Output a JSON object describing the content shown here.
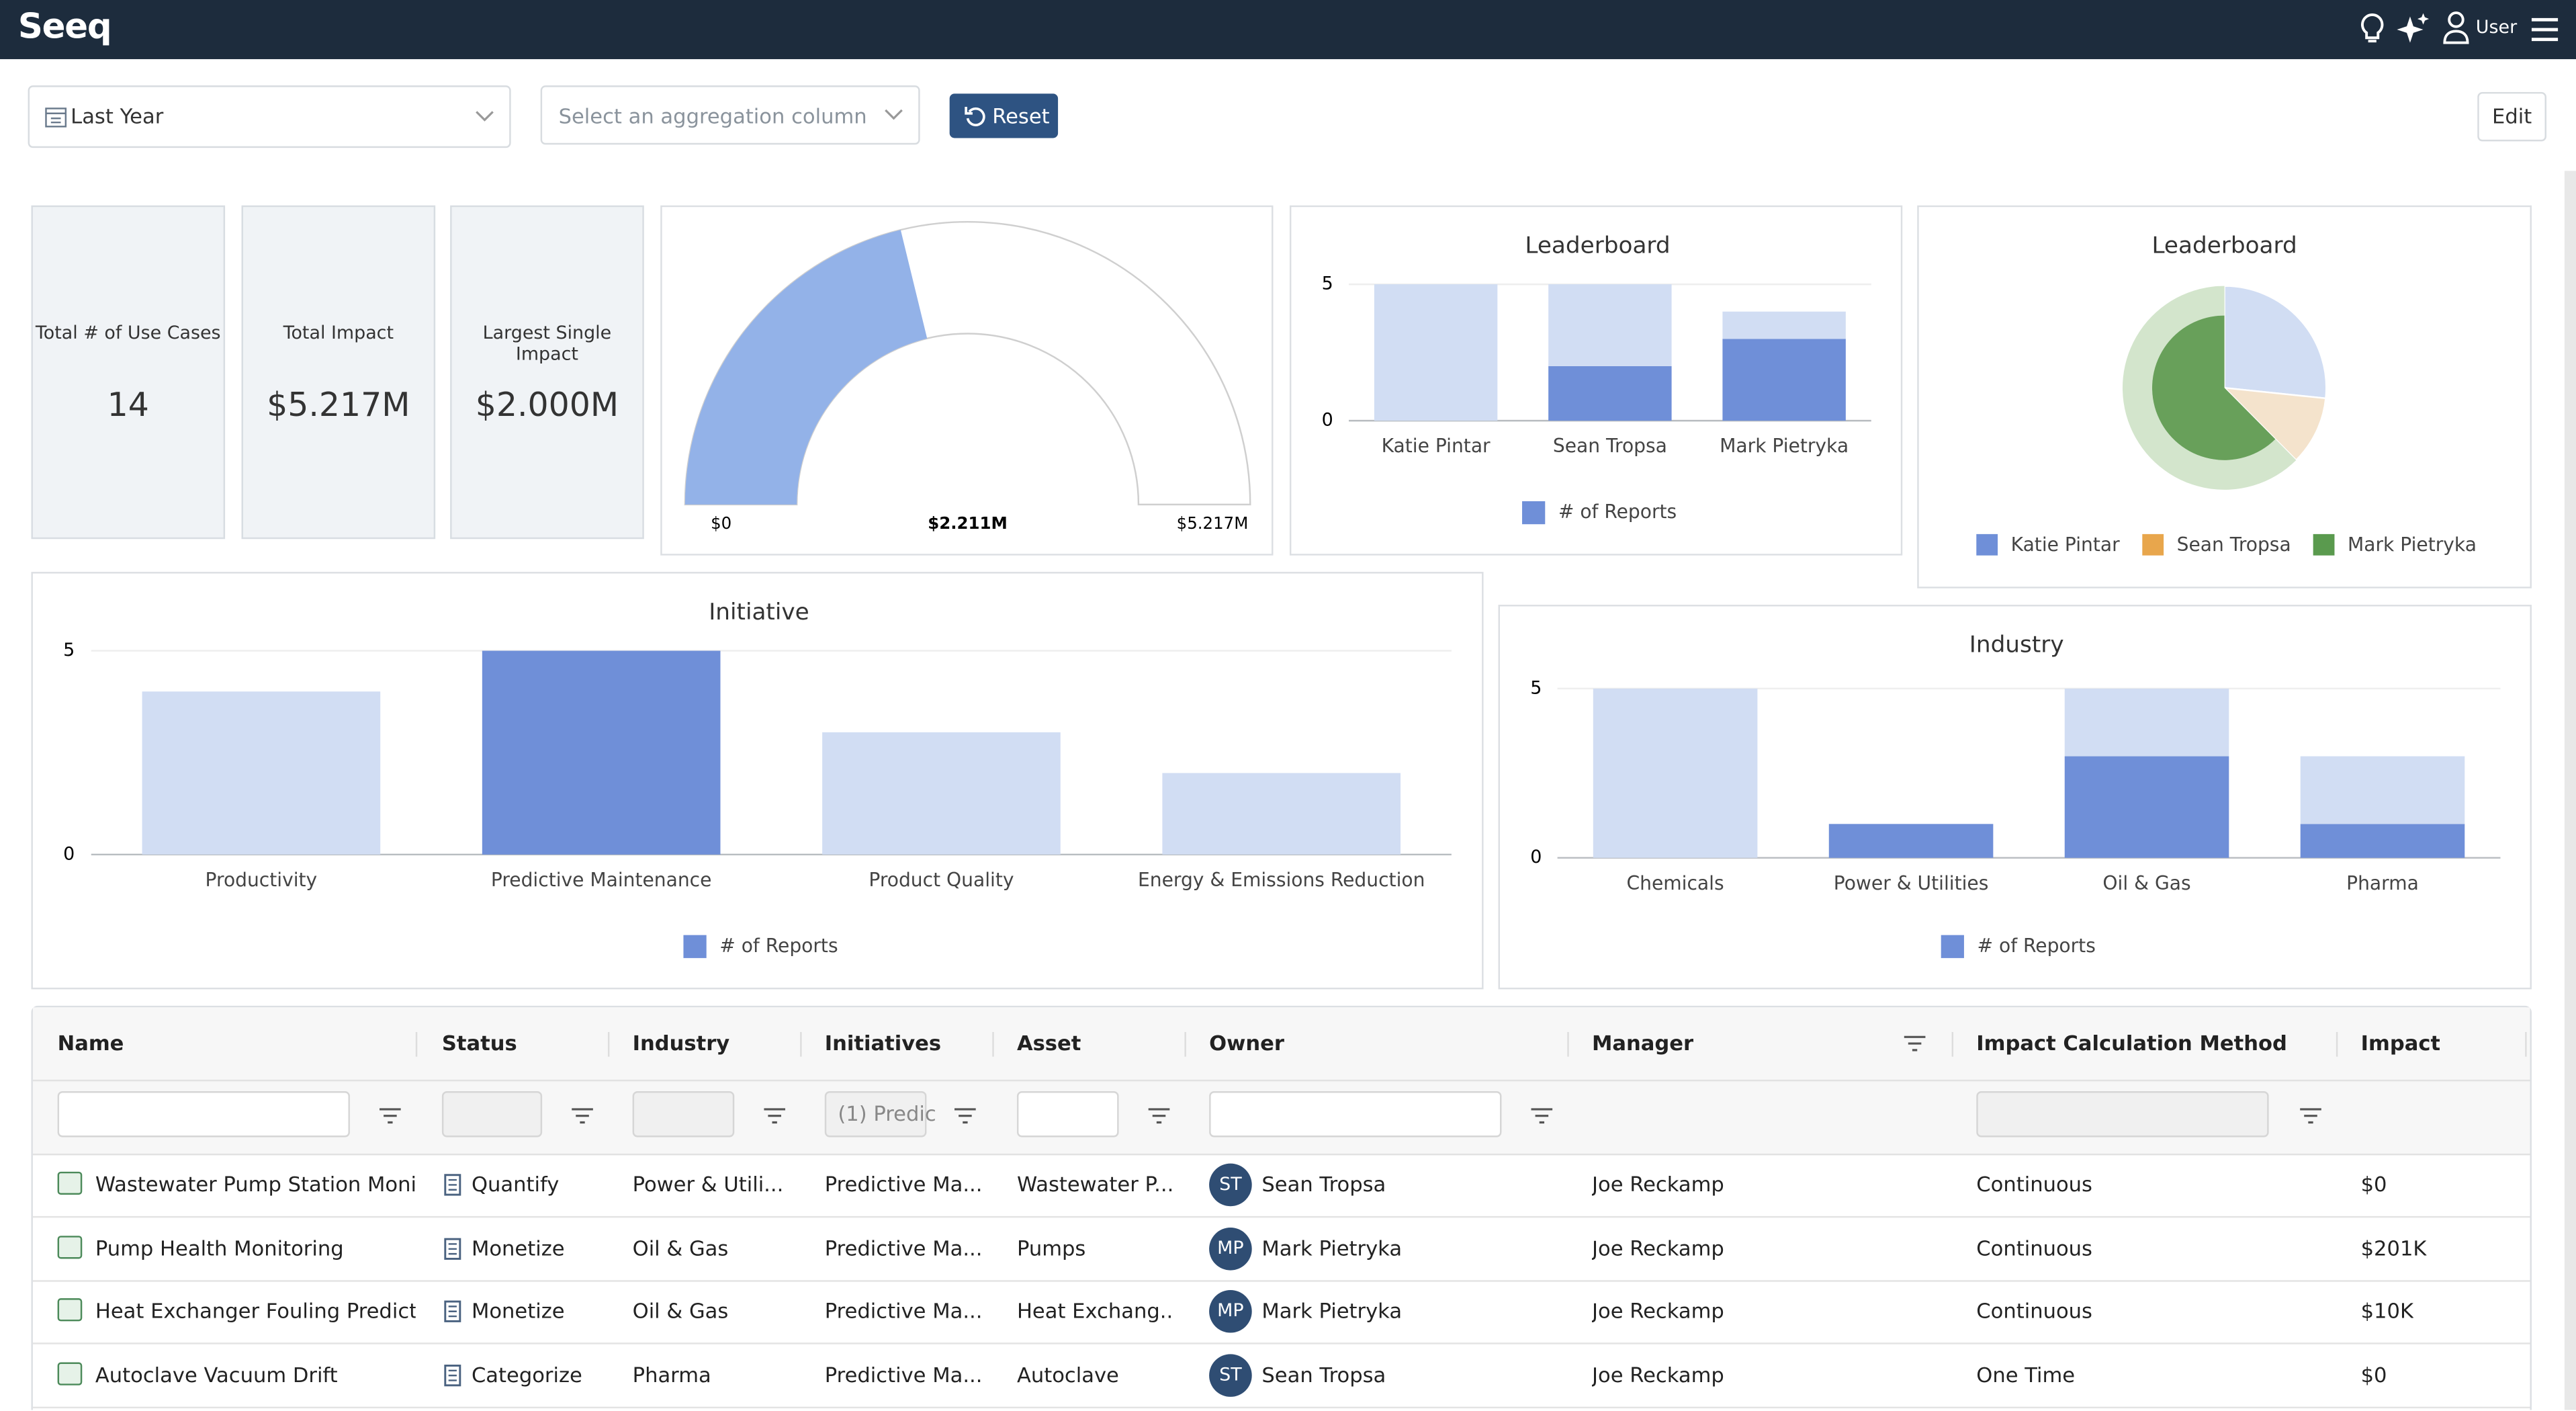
{
  "header": {
    "logo": "Seeq",
    "user": "User"
  },
  "toolbar": {
    "date_range": "Last Year",
    "aggregation_placeholder": "Select an aggregation column",
    "reset": "Reset",
    "edit": "Edit"
  },
  "kpis": [
    {
      "label": "Total # of Use Cases",
      "value": 14
    },
    {
      "label": "Total Impact",
      "value": "$5.217M"
    },
    {
      "label": "Largest Single Impact",
      "value": "$2.000M"
    }
  ],
  "gauge": {
    "type": "gauge",
    "min": {
      "value": 0,
      "label": "$0"
    },
    "max": {
      "value": 5217000,
      "label": "$5.217M"
    },
    "value": 2211000,
    "value_label": "$2.211M",
    "color": "#93b2e8"
  },
  "leaderboard_bar": {
    "type": "bar",
    "title": "Leaderboard",
    "categories": [
      "Katie Pintar",
      "Sean Tropsa",
      "Mark Pietryka"
    ],
    "series": [
      {
        "name": "# of Reports",
        "color": "#6f8fd8",
        "values": [
          0,
          2,
          3
        ]
      },
      {
        "color": "#d1ddf3",
        "values": [
          5,
          3,
          1
        ]
      }
    ],
    "ylim": [
      0,
      5
    ],
    "yticks": [
      0,
      5
    ],
    "stacked": true
  },
  "leaderboard_pie": {
    "type": "pie",
    "title": "Leaderboard",
    "categories": [
      "Katie Pintar",
      "Sean Tropsa",
      "Mark Pietryka"
    ],
    "values": [
      1.39,
      0.57,
      3.257
    ],
    "colors": [
      "#d1ddf3",
      "#f4e3cc",
      "#68a05a"
    ],
    "legend_colors": [
      "#6f8fd8",
      "#e8a64c",
      "#5a9a4e"
    ],
    "highlight_index": 2,
    "highlight_color": "#d3e5cc"
  },
  "initiative_chart": {
    "type": "bar",
    "title": "Initiative",
    "categories": [
      "Productivity",
      "Predictive Maintenance",
      "Product Quality",
      "Energy & Emissions Reduction"
    ],
    "series": [
      {
        "name": "# of Reports",
        "color": "#6f8fd8",
        "values": [
          0,
          5,
          0,
          0
        ]
      },
      {
        "color": "#d1ddf3",
        "values": [
          4,
          0,
          3,
          2
        ]
      }
    ],
    "ylim": [
      0,
      5
    ],
    "yticks": [
      0,
      5
    ],
    "stacked": true
  },
  "industry_chart": {
    "type": "bar",
    "title": "Industry",
    "categories": [
      "Chemicals",
      "Power & Utilities",
      "Oil & Gas",
      "Pharma"
    ],
    "series": [
      {
        "name": "# of Reports",
        "color": "#6f8fd8",
        "values": [
          0,
          1,
          3,
          1
        ]
      },
      {
        "color": "#d1ddf3",
        "values": [
          5,
          0,
          2,
          2
        ]
      }
    ],
    "ylim": [
      0,
      5
    ],
    "yticks": [
      0,
      5
    ],
    "stacked": true
  },
  "table": {
    "columns": [
      "Name",
      "Status",
      "Industry",
      "Initiatives",
      "Asset",
      "Owner",
      "Manager",
      "Impact Calculation Method",
      "Impact"
    ],
    "initiatives_filter": "(1) Predic",
    "owner_initials": [
      "ST",
      "MP",
      "MP",
      "ST"
    ],
    "rows": [
      [
        "Wastewater Pump Station Monit",
        "Quantify",
        "Power & Utili...",
        "Predictive Ma...",
        "Wastewater P...",
        "Sean Tropsa",
        "Joe Reckamp",
        "Continuous",
        "$0"
      ],
      [
        "Pump Health Monitoring",
        "Monetize",
        "Oil & Gas",
        "Predictive Ma...",
        "Pumps",
        "Mark Pietryka",
        "Joe Reckamp",
        "Continuous",
        "$201K"
      ],
      [
        "Heat Exchanger Fouling Predicti",
        "Monetize",
        "Oil & Gas",
        "Predictive Ma...",
        "Heat Exchang...",
        "Mark Pietryka",
        "Joe Reckamp",
        "Continuous",
        "$10K"
      ],
      [
        "Autoclave Vacuum Drift",
        "Categorize",
        "Pharma",
        "Predictive Ma...",
        "Autoclave",
        "Sean Tropsa",
        "Joe Reckamp",
        "One Time",
        "$0"
      ]
    ]
  }
}
